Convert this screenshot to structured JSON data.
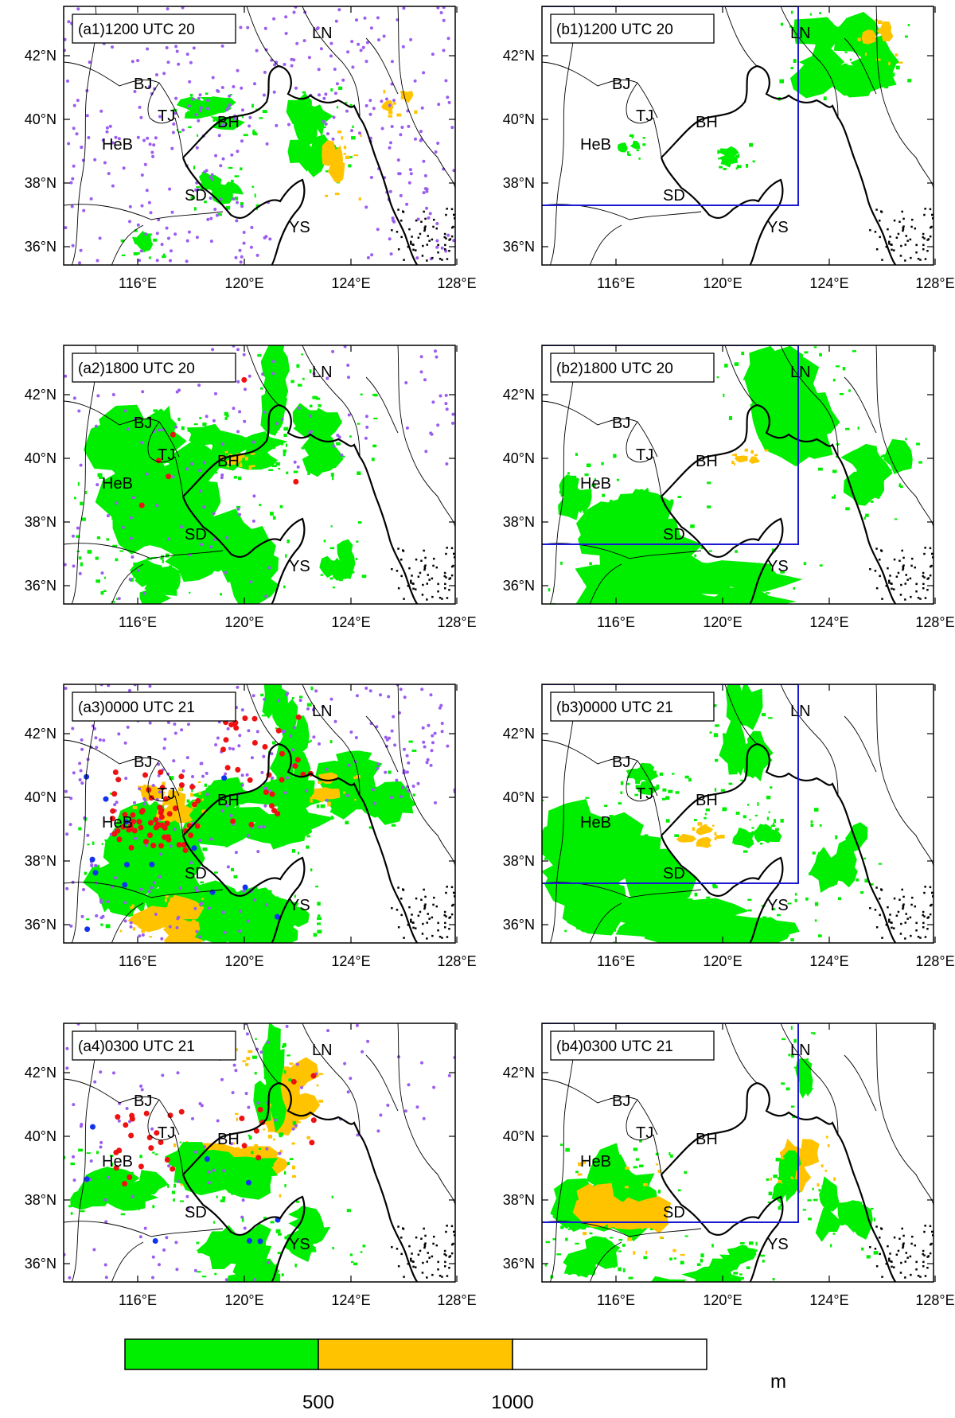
{
  "figure": {
    "lon_ticks": [
      "116°E",
      "120°E",
      "124°E",
      "128°E"
    ],
    "lat_ticks": [
      "42°N",
      "40°N",
      "38°N",
      "36°N"
    ],
    "region_labels": [
      "LN",
      "BJ",
      "TJ",
      "BH",
      "HeB",
      "SD",
      "YS"
    ],
    "panels": [
      {
        "id": "a1",
        "title": "(a1)1200 UTC 20",
        "domain_box": false
      },
      {
        "id": "b1",
        "title": "(b1)1200 UTC 20",
        "domain_box": true
      },
      {
        "id": "a2",
        "title": "(a2)1800 UTC 20",
        "domain_box": false
      },
      {
        "id": "b2",
        "title": "(b2)1800 UTC 20",
        "domain_box": true
      },
      {
        "id": "a3",
        "title": "(a3)0000 UTC 21",
        "domain_box": false
      },
      {
        "id": "b3",
        "title": "(b3)0000 UTC 21",
        "domain_box": true
      },
      {
        "id": "a4",
        "title": "(a4)0300 UTC 21",
        "domain_box": false
      },
      {
        "id": "b4",
        "title": "(b4)0300 UTC 21",
        "domain_box": true
      }
    ]
  },
  "colorbar": {
    "ticks": [
      "500",
      "1000"
    ],
    "unit": "m",
    "bins": [
      {
        "color": "#00ee00"
      },
      {
        "color": "#ffc300"
      },
      {
        "color": "#ffffff"
      }
    ]
  },
  "colors": {
    "low_visibility": "#00ee00",
    "mid_visibility": "#ffc300",
    "station_dot_purple": "#9b5cf0",
    "station_dot_red": "#ee1111",
    "station_dot_blue": "#1133ee",
    "domain_box": "#1a1ad0"
  }
}
